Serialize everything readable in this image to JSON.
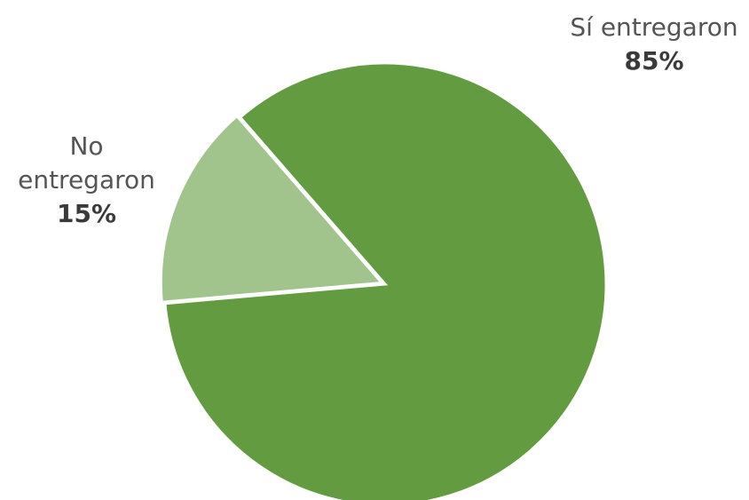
{
  "chart_data": {
    "type": "pie",
    "categories": [
      "Sí entregaron",
      "No entregaron"
    ],
    "values": [
      85,
      15
    ],
    "value_labels": [
      "85%",
      "15%"
    ],
    "colors": [
      "#629b40",
      "#a1c38c"
    ]
  }
}
